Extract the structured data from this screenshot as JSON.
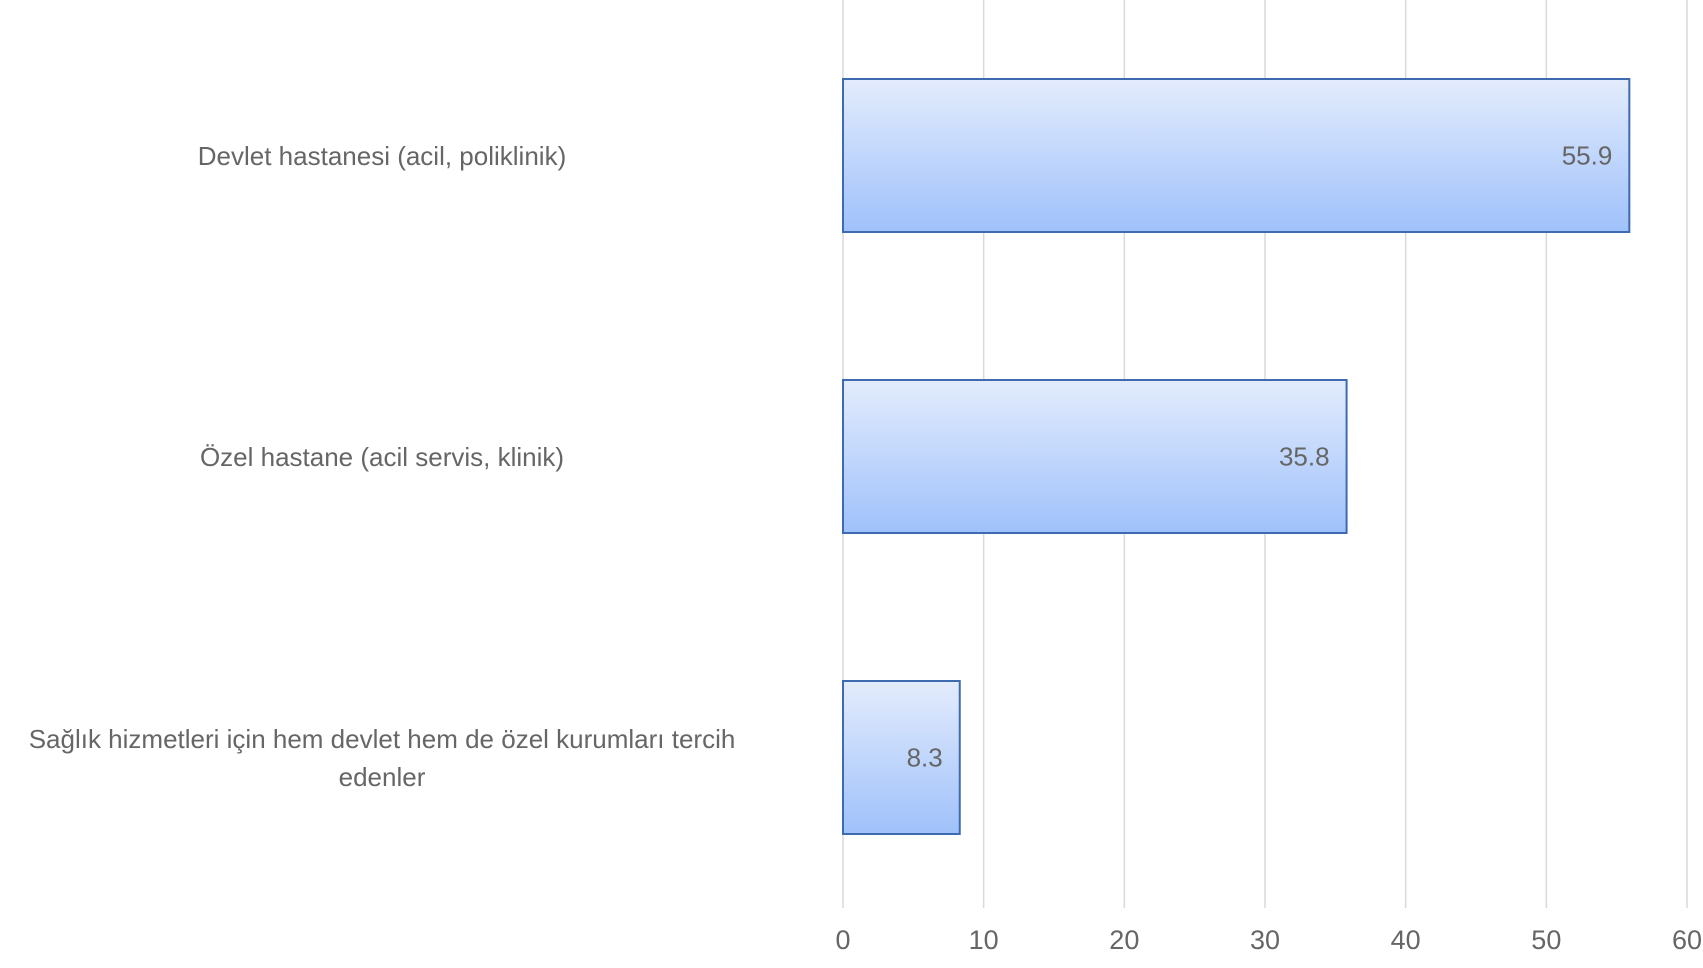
{
  "chart_data": {
    "type": "bar",
    "orientation": "horizontal",
    "categories": [
      [
        "Devlet hastanesi (acil, poliklinik)"
      ],
      [
        "Özel hastane (acil servis, klinik)"
      ],
      [
        "Sağlık hizmetleri için hem devlet hem de özel kurumları tercih",
        "edenler"
      ]
    ],
    "values": [
      55.9,
      35.8,
      8.3
    ],
    "value_labels": [
      "55.9",
      "35.8",
      "8.3"
    ],
    "xlim": [
      0,
      60
    ],
    "ticks": [
      0,
      10,
      20,
      30,
      40,
      50,
      60
    ],
    "tick_labels": [
      "0",
      "10",
      "20",
      "30",
      "40",
      "50",
      "60"
    ],
    "grid": true,
    "title": "",
    "xlabel": "",
    "ylabel": ""
  },
  "colors": {
    "bar_fill_top": "#e3ecfc",
    "bar_fill_bottom": "#9fc1fb",
    "bar_stroke": "#3e6ab0",
    "grid": "#d9d9d9",
    "text": "#666666"
  }
}
